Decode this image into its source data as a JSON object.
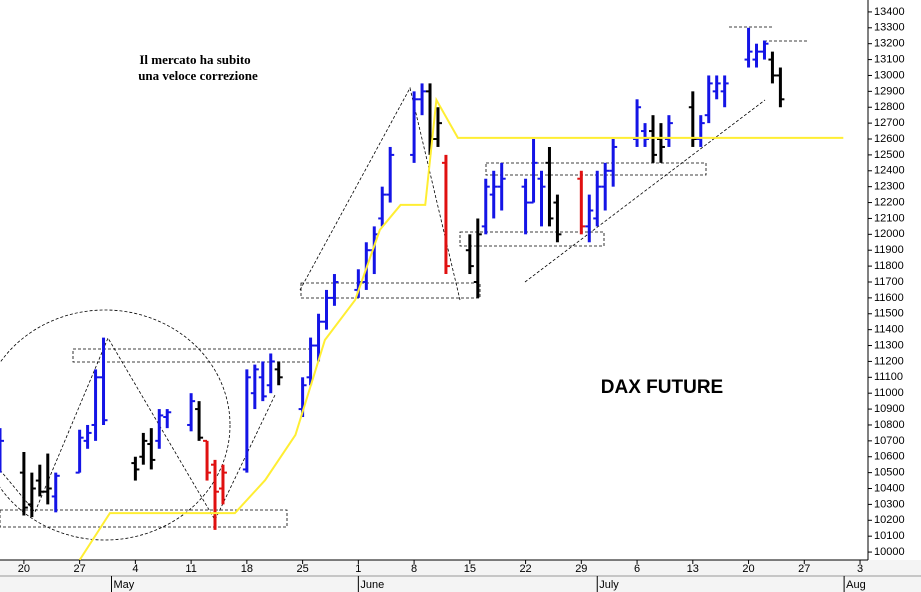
{
  "chart_data": {
    "type": "ohlc",
    "title": "DAX FUTURE",
    "annotations": [
      "Il mercato ha subito",
      "una veloce correzione"
    ],
    "x": [
      -3,
      0,
      1,
      2,
      3,
      4,
      7,
      8,
      9,
      10,
      14,
      15,
      16,
      17,
      18,
      21,
      22,
      23,
      24,
      25,
      28,
      29,
      30,
      31,
      32,
      35,
      36,
      37,
      38,
      39,
      42,
      43,
      44,
      45,
      46,
      49,
      50,
      51,
      52,
      53,
      56,
      57,
      58,
      59,
      60,
      63,
      64,
      65,
      66,
      67,
      70,
      71,
      72,
      73,
      74,
      77,
      78,
      79,
      80,
      81,
      84,
      85,
      86,
      87,
      88,
      91,
      92,
      93,
      94,
      95
    ],
    "open": [
      10600,
      10500,
      10300,
      10450,
      10380,
      10350,
      10500,
      10700,
      10800,
      11100,
      10560,
      10600,
      10680,
      10700,
      10850,
      10800,
      10900,
      10700,
      10550,
      10400,
      10520,
      11000,
      11100,
      11050,
      11150,
      10900,
      11100,
      11300,
      11450,
      11600,
      11650,
      11700,
      11900,
      12100,
      12250,
      12500,
      12850,
      12900,
      12600,
      12450,
      11900,
      11700,
      12050,
      12250,
      12300,
      12300,
      12200,
      12350,
      12450,
      12200,
      12350,
      12050,
      12100,
      12300,
      12400,
      12600,
      12650,
      12650,
      12600,
      12600,
      12800,
      12600,
      12750,
      12900,
      12900,
      13100,
      13100,
      13150,
      13100,
      13000
    ],
    "high": [
      10780,
      10630,
      10500,
      10550,
      10620,
      10500,
      10770,
      10800,
      11150,
      11350,
      10600,
      10750,
      10780,
      10900,
      10900,
      11000,
      10950,
      10700,
      10580,
      10550,
      11150,
      11180,
      11200,
      11250,
      11200,
      11100,
      11350,
      11500,
      11650,
      11750,
      11780,
      11950,
      12050,
      12300,
      12550,
      12900,
      12950,
      12950,
      12800,
      12500,
      12000,
      12100,
      12350,
      12400,
      12450,
      12350,
      12600,
      12400,
      12550,
      12250,
      12400,
      12250,
      12400,
      12450,
      12600,
      12850,
      12700,
      12750,
      12700,
      12750,
      12900,
      12750,
      13000,
      13000,
      13000,
      13300,
      13200,
      13220,
      13150,
      13050
    ],
    "low": [
      10500,
      10230,
      10220,
      10350,
      10300,
      10250,
      10500,
      10650,
      10700,
      10800,
      10450,
      10550,
      10520,
      10650,
      10780,
      10760,
      10700,
      10450,
      10140,
      10300,
      10500,
      10900,
      10950,
      11000,
      11050,
      10850,
      11050,
      11200,
      11400,
      11550,
      11600,
      11650,
      11750,
      12050,
      12200,
      12450,
      12750,
      12500,
      12550,
      11750,
      11750,
      11600,
      12000,
      12100,
      12150,
      12000,
      12200,
      12050,
      12050,
      11950,
      12000,
      11950,
      12050,
      12150,
      12300,
      12550,
      12550,
      12450,
      12450,
      12550,
      12550,
      12550,
      12700,
      12850,
      12800,
      13050,
      13050,
      13100,
      12950,
      12800
    ],
    "close": [
      10700,
      10280,
      10400,
      10380,
      10400,
      10480,
      10720,
      10750,
      11100,
      10830,
      10520,
      10700,
      10580,
      10860,
      10880,
      10950,
      10720,
      10500,
      10380,
      10500,
      11100,
      11150,
      10980,
      11200,
      11100,
      11050,
      11300,
      11450,
      11600,
      11700,
      11700,
      11900,
      12000,
      12250,
      12500,
      12850,
      12900,
      12600,
      12700,
      11800,
      11800,
      12000,
      12300,
      12300,
      12350,
      12200,
      12450,
      12300,
      12100,
      12000,
      12050,
      12150,
      12300,
      12400,
      12550,
      12800,
      12600,
      12500,
      12550,
      12700,
      12600,
      12700,
      12950,
      12950,
      12950,
      13150,
      13150,
      13200,
      13000,
      12850
    ],
    "colors": [
      "#1414e6",
      "#000000",
      "#000000",
      "#000000",
      "#000000",
      "#1414e6",
      "#1414e6",
      "#1414e6",
      "#1414e6",
      "#1414e6",
      "#000000",
      "#000000",
      "#000000",
      "#1414e6",
      "#1414e6",
      "#1414e6",
      "#000000",
      "#e01010",
      "#e01010",
      "#e01010",
      "#1414e6",
      "#1414e6",
      "#1414e6",
      "#1414e6",
      "#000000",
      "#1414e6",
      "#1414e6",
      "#1414e6",
      "#1414e6",
      "#1414e6",
      "#1414e6",
      "#1414e6",
      "#1414e6",
      "#1414e6",
      "#1414e6",
      "#1414e6",
      "#1414e6",
      "#000000",
      "#000000",
      "#e01010",
      "#000000",
      "#000000",
      "#1414e6",
      "#1414e6",
      "#1414e6",
      "#1414e6",
      "#1414e6",
      "#1414e6",
      "#000000",
      "#000000",
      "#e01010",
      "#1414e6",
      "#1414e6",
      "#1414e6",
      "#1414e6",
      "#1414e6",
      "#1414e6",
      "#000000",
      "#000000",
      "#1414e6",
      "#000000",
      "#1414e6",
      "#1414e6",
      "#1414e6",
      "#1414e6",
      "#1414e6",
      "#1414e6",
      "#1414e6",
      "#000000",
      "#000000"
    ],
    "line": {
      "color": "#ffee33",
      "x": [
        7,
        10.8,
        26.5,
        30.3,
        34.1,
        37.8,
        41.6,
        44.7,
        47.3,
        50.4,
        51.8,
        54.5,
        102.9
      ],
      "values": [
        9950,
        10245,
        10245,
        10453,
        10737,
        11335,
        11587,
        12028,
        12185,
        12185,
        12846,
        12607,
        12607
      ]
    },
    "xlim": [
      -3,
      106
    ],
    "ylim": [
      9950,
      13475
    ],
    "xticks": [
      {
        "value": 0,
        "label": "20"
      },
      {
        "value": 7,
        "label": "27"
      },
      {
        "value": 14,
        "label": "4"
      },
      {
        "value": 21,
        "label": "11"
      },
      {
        "value": 28,
        "label": "18"
      },
      {
        "value": 35,
        "label": "25"
      },
      {
        "value": 42,
        "label": "1"
      },
      {
        "value": 49,
        "label": "8"
      },
      {
        "value": 56,
        "label": "15"
      },
      {
        "value": 63,
        "label": "22"
      },
      {
        "value": 70,
        "label": "29"
      },
      {
        "value": 77,
        "label": "6"
      },
      {
        "value": 84,
        "label": "13"
      },
      {
        "value": 91,
        "label": "20"
      },
      {
        "value": 98,
        "label": "27"
      },
      {
        "value": 105,
        "label": "3"
      }
    ],
    "months": [
      {
        "value": 11,
        "label": "May"
      },
      {
        "value": 42,
        "label": "June"
      },
      {
        "value": 72,
        "label": "July"
      },
      {
        "value": 103,
        "label": "Aug"
      }
    ],
    "yticks": [
      10000,
      10100,
      10200,
      10300,
      10400,
      10500,
      10600,
      10700,
      10800,
      10900,
      11000,
      11100,
      11200,
      11300,
      11400,
      11500,
      11600,
      11700,
      11800,
      11900,
      12000,
      12100,
      12200,
      12300,
      12400,
      12500,
      12600,
      12700,
      12800,
      12900,
      13000,
      13100,
      13200,
      13300,
      13400
    ]
  }
}
